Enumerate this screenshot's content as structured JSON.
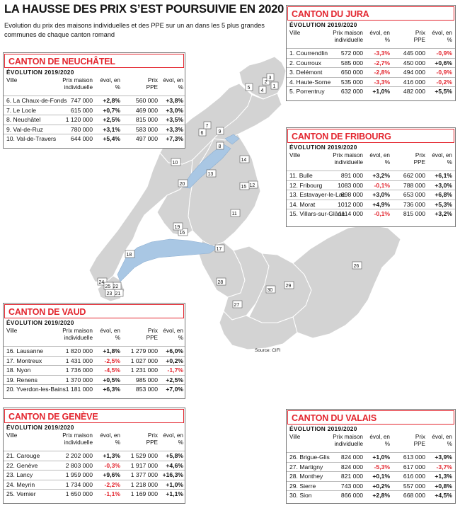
{
  "title": "LA HAUSSE DES PRIX S’EST POURSUIVIE EN 2020",
  "subtitle": "Evolution du prix des maisons individuelles et des PPE sur un an dans les 5 plus grandes communes de chaque canton romand",
  "source": "Source: CIFI",
  "columns": {
    "ville": "Ville",
    "prix_maison": "Prix maison individuelle",
    "evol": "évol, en %",
    "prix_ppe": "Prix PPE"
  },
  "cantons": {
    "neuchatel": {
      "name": "CANTON DE NEUCHÂTEL",
      "period": "ÉVOLUTION 2019/2020",
      "rows": [
        {
          "ville": "6. La Chaux-de-Fonds",
          "maison": "747 000",
          "evol_maison": "+2,8%",
          "ppe": "560 000",
          "evol_ppe": "+3,8%"
        },
        {
          "ville": "7. Le Locle",
          "maison": "615 000",
          "evol_maison": "+0,7%",
          "ppe": "469 000",
          "evol_ppe": "+3,0%"
        },
        {
          "ville": "8. Neuchâtel",
          "maison": "1 120 000",
          "evol_maison": "+2,5%",
          "ppe": "815 000",
          "evol_ppe": "+3,5%"
        },
        {
          "ville": "9. Val-de-Ruz",
          "maison": "780 000",
          "evol_maison": "+3,1%",
          "ppe": "583 000",
          "evol_ppe": "+3,3%"
        },
        {
          "ville": "10. Val-de-Travers",
          "maison": "644 000",
          "evol_maison": "+5,4%",
          "ppe": "497 000",
          "evol_ppe": "+7,3%"
        }
      ]
    },
    "jura": {
      "name": "CANTON DU JURA",
      "period": "ÉVOLUTION 2019/2020",
      "rows": [
        {
          "ville": "1. Courrendlin",
          "maison": "572 000",
          "evol_maison": "-3,3%",
          "ppe": "445 000",
          "evol_ppe": "-0,9%"
        },
        {
          "ville": "2. Courroux",
          "maison": "585 000",
          "evol_maison": "-2,7%",
          "ppe": "450 000",
          "evol_ppe": "+0,6%"
        },
        {
          "ville": "3. Delémont",
          "maison": "650 000",
          "evol_maison": "-2,8%",
          "ppe": "494 000",
          "evol_ppe": "-0,9%"
        },
        {
          "ville": "4. Haute-Sorne",
          "maison": "535 000",
          "evol_maison": "-3,3%",
          "ppe": "416 000",
          "evol_ppe": "-0,2%"
        },
        {
          "ville": "5. Porrentruy",
          "maison": "632 000",
          "evol_maison": "+1,0%",
          "ppe": "482 000",
          "evol_ppe": "+5,5%"
        }
      ]
    },
    "fribourg": {
      "name": "CANTON DE FRIBOURG",
      "period": "ÉVOLUTION 2019/2020",
      "rows": [
        {
          "ville": "11. Bulle",
          "maison": "891 000",
          "evol_maison": "+3,2%",
          "ppe": "662 000",
          "evol_ppe": "+6,1%"
        },
        {
          "ville": "12. Fribourg",
          "maison": "1083 000",
          "evol_maison": "-0,1%",
          "ppe": "788 000",
          "evol_ppe": "+3,0%"
        },
        {
          "ville": "13. Estavayer-le-Lac",
          "maison": "898 000",
          "evol_maison": "+3,0%",
          "ppe": "653 000",
          "evol_ppe": "+6,8%"
        },
        {
          "ville": "14. Morat",
          "maison": "1012 000",
          "evol_maison": "+4,9%",
          "ppe": "736 000",
          "evol_ppe": "+5,3%"
        },
        {
          "ville": "15. Villars-sur-Glâne",
          "maison": "1114 000",
          "evol_maison": "-0,1%",
          "ppe": "815 000",
          "evol_ppe": "+3,2%"
        }
      ]
    },
    "vaud": {
      "name": "CANTON DE VAUD",
      "period": "ÉVOLUTION 2019/2020",
      "rows": [
        {
          "ville": "16. Lausanne",
          "maison": "1 820 000",
          "evol_maison": "+1,8%",
          "ppe": "1 279 000",
          "evol_ppe": "+6,0%"
        },
        {
          "ville": "17. Montreux",
          "maison": "1 431 000",
          "evol_maison": "-2,5%",
          "ppe": "1 027 000",
          "evol_ppe": "+0,2%"
        },
        {
          "ville": "18. Nyon",
          "maison": "1 736 000",
          "evol_maison": "-4,5%",
          "ppe": "1 231 000",
          "evol_ppe": "-1,7%"
        },
        {
          "ville": "19. Renens",
          "maison": "1 370 000",
          "evol_maison": "+0,5%",
          "ppe": "985 000",
          "evol_ppe": "+2,5%"
        },
        {
          "ville": "20. Yverdon-les-Bains",
          "maison": "1 181 000",
          "evol_maison": "+6,3%",
          "ppe": "853 000",
          "evol_ppe": "+7,0%"
        }
      ]
    },
    "geneve": {
      "name": "CANTON DE GENÈVE",
      "period": "ÉVOLUTION 2019/2020",
      "rows": [
        {
          "ville": "21. Carouge",
          "maison": "2 202 000",
          "evol_maison": "+1,3%",
          "ppe": "1 529 000",
          "evol_ppe": "+5,8%"
        },
        {
          "ville": "22. Genève",
          "maison": "2 803 000",
          "evol_maison": "-0,3%",
          "ppe": "1 917 000",
          "evol_ppe": "+4,6%"
        },
        {
          "ville": "23. Lancy",
          "maison": "1 959 000",
          "evol_maison": "+9,6%",
          "ppe": "1 377 000",
          "evol_ppe": "+16,3%"
        },
        {
          "ville": "24. Meyrin",
          "maison": "1 734 000",
          "evol_maison": "-2,2%",
          "ppe": "1 218 000",
          "evol_ppe": "+1,0%"
        },
        {
          "ville": "25. Vernier",
          "maison": "1 650 000",
          "evol_maison": "-1,1%",
          "ppe": "1 169 000",
          "evol_ppe": "+1,1%"
        }
      ]
    },
    "valais": {
      "name": "CANTON DU VALAIS",
      "period": "ÉVOLUTION 2019/2020",
      "rows": [
        {
          "ville": "26. Brigue-Glis",
          "maison": "824 000",
          "evol_maison": "+1,0%",
          "ppe": "613 000",
          "evol_ppe": "+3,9%"
        },
        {
          "ville": "27. Martigny",
          "maison": "824 000",
          "evol_maison": "-5,3%",
          "ppe": "617 000",
          "evol_ppe": "-3,7%"
        },
        {
          "ville": "28. Monthey",
          "maison": "821 000",
          "evol_maison": "+0,1%",
          "ppe": "616 000",
          "evol_ppe": "+1,3%"
        },
        {
          "ville": "29. Sierre",
          "maison": "743 000",
          "evol_maison": "+0,2%",
          "ppe": "557 000",
          "evol_ppe": "+0,8%"
        },
        {
          "ville": "30. Sion",
          "maison": "866 000",
          "evol_maison": "+2,8%",
          "ppe": "668 000",
          "evol_ppe": "+4,5%"
        }
      ]
    }
  },
  "map_labels": [
    "1",
    "2",
    "3",
    "4",
    "5",
    "6",
    "7",
    "8",
    "9",
    "10",
    "11",
    "12",
    "13",
    "14",
    "15",
    "16",
    "17",
    "18",
    "19",
    "20",
    "21",
    "22",
    "23",
    "24",
    "25",
    "26",
    "27",
    "28",
    "29",
    "30"
  ]
}
